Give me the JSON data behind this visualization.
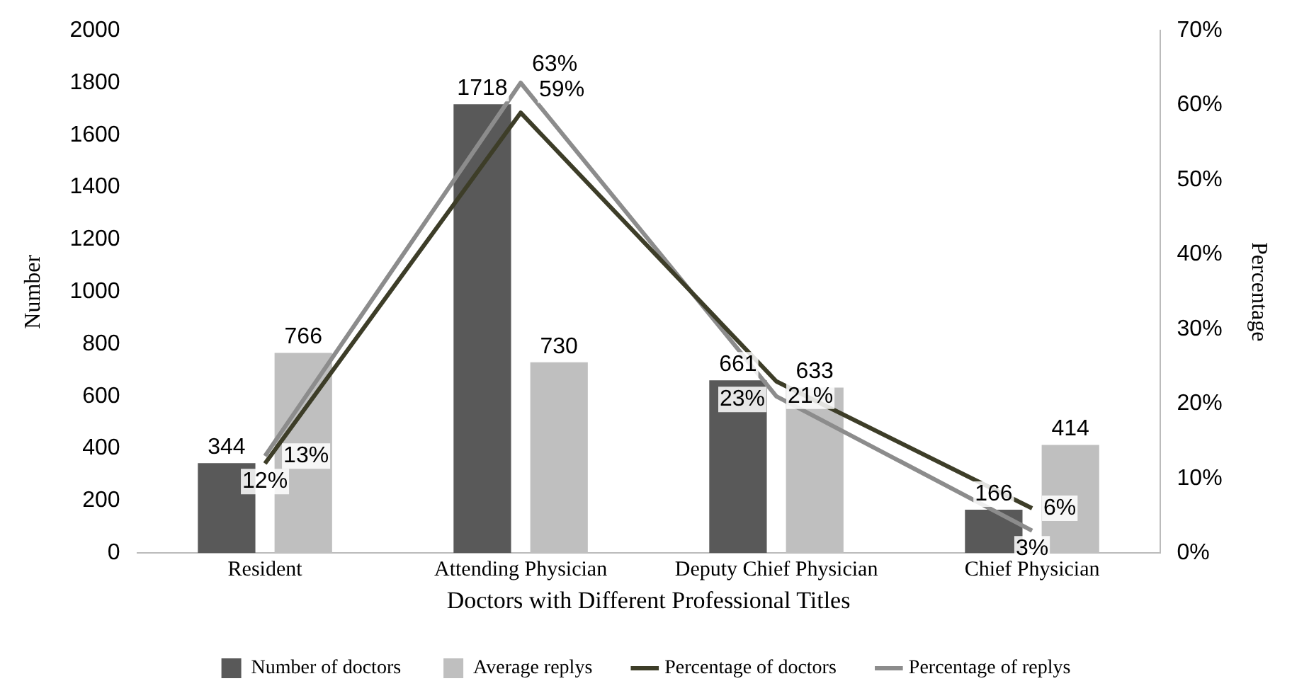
{
  "chart_data": {
    "type": "bar",
    "xlabel": "Doctors with Different Professional Titles",
    "ylabel": "Number",
    "y2label": "Percentage",
    "categories": [
      "Resident",
      "Attending Physician",
      "Deputy Chief Physician",
      "Chief Physician"
    ],
    "series": [
      {
        "name": "Number of doctors",
        "color": "#595959",
        "values": [
          344,
          1718,
          661,
          166
        ],
        "value_labels": [
          "344",
          "1718",
          "661",
          "166"
        ]
      },
      {
        "name": "Average replys",
        "color": "#bfbfbf",
        "values": [
          766,
          730,
          633,
          414
        ],
        "value_labels": [
          "766",
          "730",
          "633",
          "414"
        ]
      },
      {
        "name": "Percentage of doctors",
        "type": "line",
        "axis": "y2",
        "color": "#3d3d28",
        "values": [
          12,
          59,
          23,
          6
        ],
        "value_labels": [
          "12%",
          "59%",
          "23%",
          "6%"
        ]
      },
      {
        "name": "Percentage of replys",
        "type": "line",
        "axis": "y2",
        "color": "#8c8c8c",
        "values": [
          13,
          63,
          21,
          3
        ],
        "value_labels": [
          "13%",
          "63%",
          "21%",
          "3%"
        ]
      }
    ],
    "ylim": [
      0,
      2000
    ],
    "yticks": [
      0,
      200,
      400,
      600,
      800,
      1000,
      1200,
      1400,
      1600,
      1800,
      2000
    ],
    "y2lim": [
      0,
      70
    ],
    "y2ticks": [
      {
        "value": 0,
        "label": "0%"
      },
      {
        "value": 10,
        "label": "10%"
      },
      {
        "value": 20,
        "label": "20%"
      },
      {
        "value": 30,
        "label": "30%"
      },
      {
        "value": 40,
        "label": "40%"
      },
      {
        "value": 50,
        "label": "50%"
      },
      {
        "value": 60,
        "label": "60%"
      },
      {
        "value": 70,
        "label": "70%"
      }
    ],
    "grid": false,
    "legend": "bottom",
    "marker": "none",
    "line_style": "solid"
  }
}
